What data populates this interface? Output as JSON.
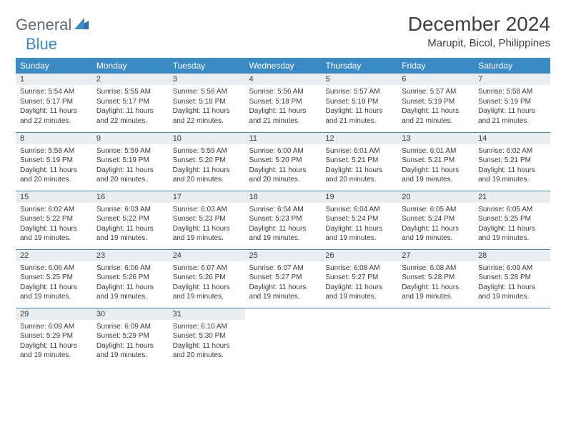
{
  "logo": {
    "word1": "General",
    "word2": "Blue"
  },
  "title": "December 2024",
  "location": "Marupit, Bicol, Philippines",
  "colors": {
    "header_bg": "#3b8ac4",
    "header_text": "#ffffff",
    "daynum_bg": "#e9edef",
    "border": "#3b8ac4",
    "text": "#3a3a3a",
    "logo_gray": "#5f6a72",
    "logo_blue": "#3b8ac4"
  },
  "columns": [
    "Sunday",
    "Monday",
    "Tuesday",
    "Wednesday",
    "Thursday",
    "Friday",
    "Saturday"
  ],
  "weeks": [
    [
      {
        "n": "1",
        "sunrise": "5:54 AM",
        "sunset": "5:17 PM",
        "daylight": "11 hours and 22 minutes."
      },
      {
        "n": "2",
        "sunrise": "5:55 AM",
        "sunset": "5:17 PM",
        "daylight": "11 hours and 22 minutes."
      },
      {
        "n": "3",
        "sunrise": "5:56 AM",
        "sunset": "5:18 PM",
        "daylight": "11 hours and 22 minutes."
      },
      {
        "n": "4",
        "sunrise": "5:56 AM",
        "sunset": "5:18 PM",
        "daylight": "11 hours and 21 minutes."
      },
      {
        "n": "5",
        "sunrise": "5:57 AM",
        "sunset": "5:18 PM",
        "daylight": "11 hours and 21 minutes."
      },
      {
        "n": "6",
        "sunrise": "5:57 AM",
        "sunset": "5:19 PM",
        "daylight": "11 hours and 21 minutes."
      },
      {
        "n": "7",
        "sunrise": "5:58 AM",
        "sunset": "5:19 PM",
        "daylight": "11 hours and 21 minutes."
      }
    ],
    [
      {
        "n": "8",
        "sunrise": "5:58 AM",
        "sunset": "5:19 PM",
        "daylight": "11 hours and 20 minutes."
      },
      {
        "n": "9",
        "sunrise": "5:59 AM",
        "sunset": "5:19 PM",
        "daylight": "11 hours and 20 minutes."
      },
      {
        "n": "10",
        "sunrise": "5:59 AM",
        "sunset": "5:20 PM",
        "daylight": "11 hours and 20 minutes."
      },
      {
        "n": "11",
        "sunrise": "6:00 AM",
        "sunset": "5:20 PM",
        "daylight": "11 hours and 20 minutes."
      },
      {
        "n": "12",
        "sunrise": "6:01 AM",
        "sunset": "5:21 PM",
        "daylight": "11 hours and 20 minutes."
      },
      {
        "n": "13",
        "sunrise": "6:01 AM",
        "sunset": "5:21 PM",
        "daylight": "11 hours and 19 minutes."
      },
      {
        "n": "14",
        "sunrise": "6:02 AM",
        "sunset": "5:21 PM",
        "daylight": "11 hours and 19 minutes."
      }
    ],
    [
      {
        "n": "15",
        "sunrise": "6:02 AM",
        "sunset": "5:22 PM",
        "daylight": "11 hours and 19 minutes."
      },
      {
        "n": "16",
        "sunrise": "6:03 AM",
        "sunset": "5:22 PM",
        "daylight": "11 hours and 19 minutes."
      },
      {
        "n": "17",
        "sunrise": "6:03 AM",
        "sunset": "5:23 PM",
        "daylight": "11 hours and 19 minutes."
      },
      {
        "n": "18",
        "sunrise": "6:04 AM",
        "sunset": "5:23 PM",
        "daylight": "11 hours and 19 minutes."
      },
      {
        "n": "19",
        "sunrise": "6:04 AM",
        "sunset": "5:24 PM",
        "daylight": "11 hours and 19 minutes."
      },
      {
        "n": "20",
        "sunrise": "6:05 AM",
        "sunset": "5:24 PM",
        "daylight": "11 hours and 19 minutes."
      },
      {
        "n": "21",
        "sunrise": "6:05 AM",
        "sunset": "5:25 PM",
        "daylight": "11 hours and 19 minutes."
      }
    ],
    [
      {
        "n": "22",
        "sunrise": "6:06 AM",
        "sunset": "5:25 PM",
        "daylight": "11 hours and 19 minutes."
      },
      {
        "n": "23",
        "sunrise": "6:06 AM",
        "sunset": "5:26 PM",
        "daylight": "11 hours and 19 minutes."
      },
      {
        "n": "24",
        "sunrise": "6:07 AM",
        "sunset": "5:26 PM",
        "daylight": "11 hours and 19 minutes."
      },
      {
        "n": "25",
        "sunrise": "6:07 AM",
        "sunset": "5:27 PM",
        "daylight": "11 hours and 19 minutes."
      },
      {
        "n": "26",
        "sunrise": "6:08 AM",
        "sunset": "5:27 PM",
        "daylight": "11 hours and 19 minutes."
      },
      {
        "n": "27",
        "sunrise": "6:08 AM",
        "sunset": "5:28 PM",
        "daylight": "11 hours and 19 minutes."
      },
      {
        "n": "28",
        "sunrise": "6:09 AM",
        "sunset": "5:28 PM",
        "daylight": "11 hours and 19 minutes."
      }
    ],
    [
      {
        "n": "29",
        "sunrise": "6:09 AM",
        "sunset": "5:29 PM",
        "daylight": "11 hours and 19 minutes."
      },
      {
        "n": "30",
        "sunrise": "6:09 AM",
        "sunset": "5:29 PM",
        "daylight": "11 hours and 19 minutes."
      },
      {
        "n": "31",
        "sunrise": "6:10 AM",
        "sunset": "5:30 PM",
        "daylight": "11 hours and 20 minutes."
      },
      null,
      null,
      null,
      null
    ]
  ],
  "labels": {
    "sunrise": "Sunrise:",
    "sunset": "Sunset:",
    "daylight": "Daylight:"
  }
}
